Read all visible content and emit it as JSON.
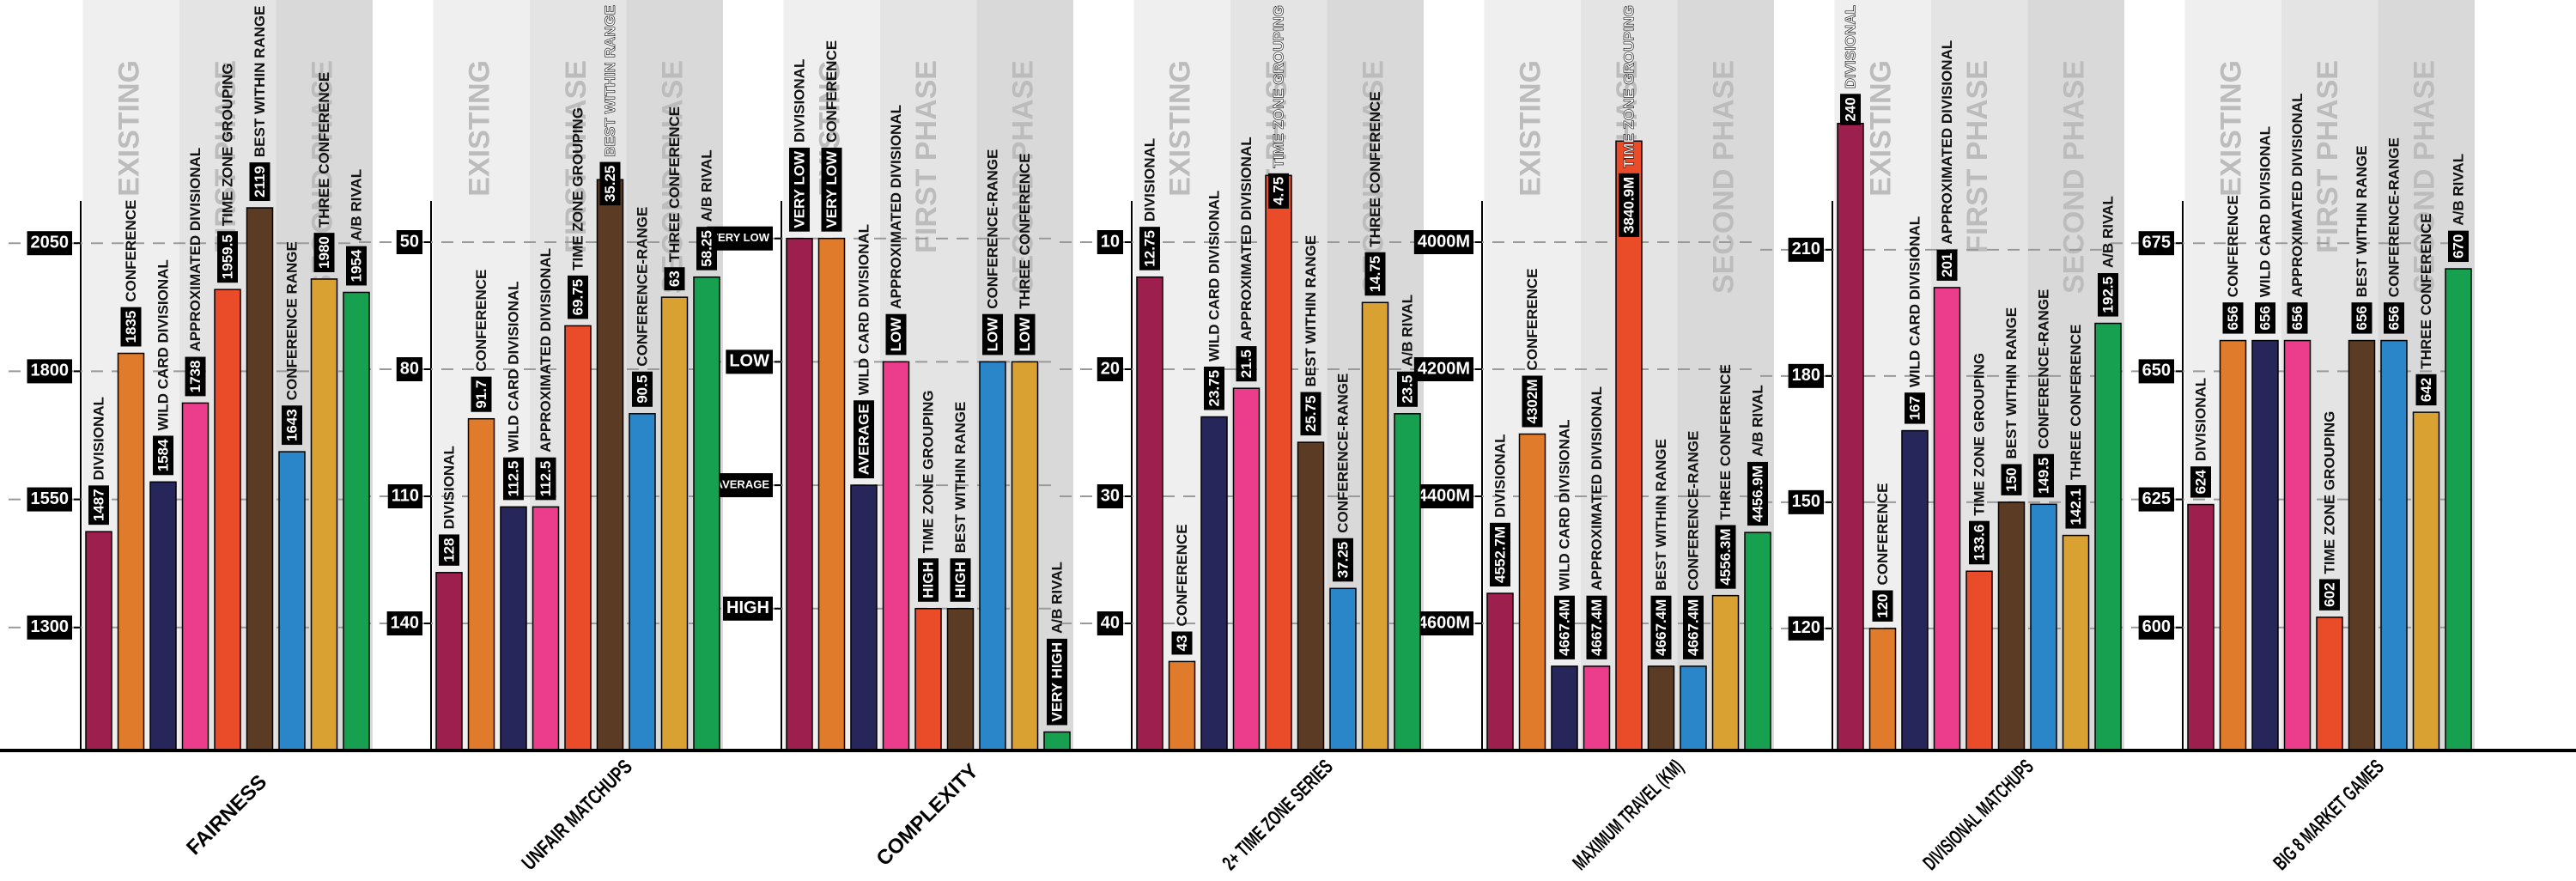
{
  "phases": [
    "EXISTING",
    "FIRST PHASE",
    "SECOND PHASE"
  ],
  "chart_data": [
    {
      "type": "bar",
      "title": "FAIRNESS",
      "categories": [
        "DIVISIONAL",
        "CONFERENCE",
        "WILD CARD DIVISIONAL",
        "APPROXIMATED DIVISIONAL",
        "TIME ZONE GROUPING",
        "BEST WITHIN RANGE",
        "CONFERENCE RANGE",
        "THREE CONFERENCE",
        "A/B RIVAL"
      ],
      "values": [
        1487,
        1835,
        1584,
        1738,
        1959.5,
        2119,
        1643,
        1980,
        1954
      ],
      "colors": [
        "#9c1f4d",
        "#e07b2b",
        "#26265a",
        "#ec3d8c",
        "#ea4c2a",
        "#5b3b23",
        "#2a86c9",
        "#d9a032",
        "#17a04f"
      ],
      "ylim": [
        1060,
        2300
      ],
      "yticks": [
        2050,
        1800,
        1550,
        1300
      ],
      "grid": true
    },
    {
      "type": "bar",
      "title": "UNFAIR MATCHUPS",
      "categories": [
        "DIVISIONAL",
        "CONFERENCE",
        "WILD CARD DIVISIONAL",
        "APPROXIMATED DIVISIONAL",
        "TIME ZONE GROUPING",
        "BEST WITHIN RANGE",
        "CONFERENCE-RANGE",
        "THREE CONFERENCE",
        "A/B RIVAL"
      ],
      "values": [
        128,
        91.7,
        112.5,
        112.5,
        69.75,
        35.25,
        90.5,
        63,
        58.25
      ],
      "colors": [
        "#9c1f4d",
        "#e07b2b",
        "#26265a",
        "#ec3d8c",
        "#ea4c2a",
        "#5b3b23",
        "#2a86c9",
        "#d9a032",
        "#17a04f"
      ],
      "ylim": [
        170,
        20
      ],
      "yticks": [
        50,
        80,
        110,
        140
      ],
      "grid": true
    },
    {
      "type": "bar",
      "title": "COMPLEXITY",
      "categories": [
        "DIVISIONAL",
        "CONFERENCE",
        "WILD CARD DIVISIONAL",
        "APPROXIMATED DIVISIONAL",
        "TIME ZONE GROUPING",
        "BEST WITHIN RANGE",
        "CONFERENCE-RANGE",
        "THREE CONFERENCE",
        "A/B RIVAL"
      ],
      "values": [
        1,
        1,
        3,
        2,
        4,
        4,
        2,
        2,
        5
      ],
      "value_labels": [
        "VERY LOW",
        "VERY LOW",
        "AVERAGE",
        "LOW",
        "HIGH",
        "HIGH",
        "LOW",
        "LOW",
        "VERY HIGH"
      ],
      "colors": [
        "#9c1f4d",
        "#e07b2b",
        "#26265a",
        "#ec3d8c",
        "#ea4c2a",
        "#5b3b23",
        "#2a86c9",
        "#d9a032",
        "#17a04f"
      ],
      "ylim": [
        5.15,
        0
      ],
      "yticks": [
        {
          "value": 1,
          "label": "VERY LOW"
        },
        {
          "value": 2,
          "label": "LOW"
        },
        {
          "value": 3,
          "label": "AVERAGE"
        },
        {
          "value": 4,
          "label": "HIGH"
        }
      ],
      "grid": true
    },
    {
      "type": "bar",
      "title": "2+ TIME ZONE SERIES",
      "categories": [
        "DIVISIONAL",
        "CONFERENCE",
        "WILD CARD DIVISIONAL",
        "APPROXIMATED DIVISIONAL",
        "TIME ZONE GROUPING",
        "BEST WITHIN RANGE",
        "CONFERENCE-RANGE",
        "THREE CONFERENCE",
        "A/B RIVAL"
      ],
      "values": [
        12.75,
        43,
        23.75,
        21.5,
        4.75,
        25.75,
        37.25,
        14.75,
        23.5
      ],
      "colors": [
        "#9c1f4d",
        "#e07b2b",
        "#26265a",
        "#ec3d8c",
        "#ea4c2a",
        "#5b3b23",
        "#2a86c9",
        "#d9a032",
        "#17a04f"
      ],
      "ylim": [
        50,
        0
      ],
      "yticks": [
        10,
        20,
        30,
        40
      ],
      "grid": true
    },
    {
      "type": "bar",
      "title": "MAXIMUM TRAVEL (KM)",
      "categories": [
        "DIVISIONAL",
        "CONFERENCE",
        "WILD CARD DIVISIONAL",
        "APPROXIMATED DIVISIONAL",
        "TIME ZONE GROUPING",
        "BEST WITHIN RANGE",
        "CONFERENCE-RANGE",
        "THREE CONFERENCE",
        "A/B RIVAL"
      ],
      "values": [
        4552.7,
        4302,
        4667.4,
        4667.4,
        3840.9,
        4667.4,
        4667.4,
        4556.3,
        4456.9
      ],
      "value_labels": [
        "4552.7M",
        "4302M",
        "4667.4M",
        "4667.4M",
        "3840.9M",
        "4667.4M",
        "4667.4M",
        "4556.3M",
        "4456.9M"
      ],
      "colors": [
        "#9c1f4d",
        "#e07b2b",
        "#26265a",
        "#ec3d8c",
        "#ea4c2a",
        "#5b3b23",
        "#2a86c9",
        "#d9a032",
        "#17a04f"
      ],
      "ylim": [
        4800,
        3800
      ],
      "yticks": [
        {
          "value": 4000,
          "label": "4000M"
        },
        {
          "value": 4200,
          "label": "4200M"
        },
        {
          "value": 4400,
          "label": "4400M"
        },
        {
          "value": 4600,
          "label": "4600M"
        }
      ],
      "grid": true
    },
    {
      "type": "bar",
      "title": "DIVISIONAL MATCHUPS",
      "categories": [
        "DIVISIONAL",
        "CONFERENCE",
        "WILD CARD DIVISIONAL",
        "APPROXIMATED DIVISIONAL",
        "TIME ZONE GROUPING",
        "BEST WITHIN RANGE",
        "CONFERENCE-RANGE",
        "THREE CONFERENCE",
        "A/B RIVAL"
      ],
      "values": [
        240,
        120,
        167,
        201,
        133.6,
        150,
        149.5,
        142.1,
        192.5
      ],
      "colors": [
        "#9c1f4d",
        "#e07b2b",
        "#26265a",
        "#ec3d8c",
        "#ea4c2a",
        "#5b3b23",
        "#2a86c9",
        "#d9a032",
        "#17a04f"
      ],
      "ylim": [
        91,
        242
      ],
      "yticks": [
        210,
        180,
        150,
        120
      ],
      "grid": true
    },
    {
      "type": "bar",
      "title": "BIG 8 MARKET GAMES",
      "categories": [
        "DIVISIONAL",
        "CONFERENCE",
        "WILD CARD DIVISIONAL",
        "APPROXIMATED DIVISIONAL",
        "TIME ZONE GROUPING",
        "BEST WITHIN RANGE",
        "CONFERENCE-RANGE",
        "THREE CONFERENCE",
        "A/B RIVAL"
      ],
      "values": [
        624,
        656,
        656,
        656,
        602,
        656,
        656,
        642,
        670
      ],
      "colors": [
        "#9c1f4d",
        "#e07b2b",
        "#26265a",
        "#ec3d8c",
        "#ea4c2a",
        "#5b3b23",
        "#2a86c9",
        "#d9a032",
        "#17a04f"
      ],
      "ylim": [
        576,
        700
      ],
      "yticks": [
        675,
        650,
        625,
        600
      ],
      "grid": true
    }
  ]
}
